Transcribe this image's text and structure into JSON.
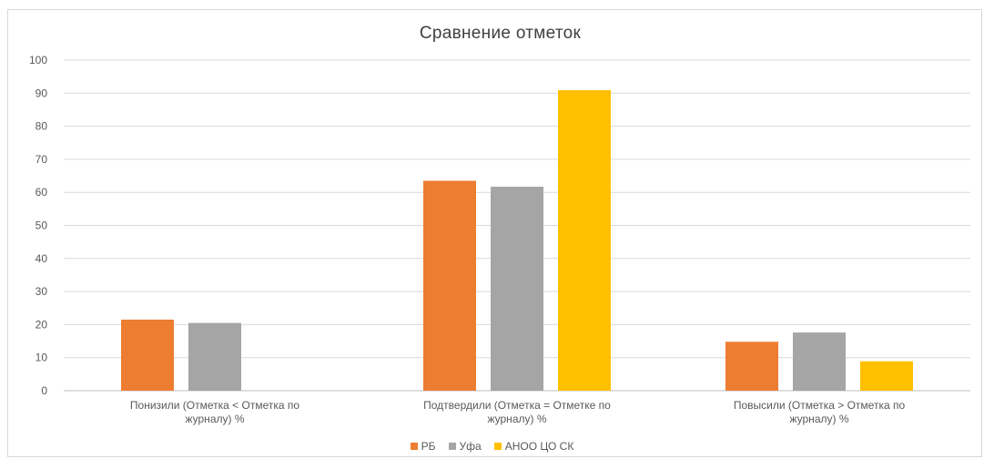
{
  "chart_data": {
    "type": "bar",
    "title": "Сравнение отметок",
    "categories": [
      [
        "Понизили (Отметка < Отметка по",
        "журналу) %"
      ],
      [
        "Подтвердили (Отметка = Отметке по",
        "журналу) %"
      ],
      [
        "Повысили (Отметка > Отметка по",
        "журналу) %"
      ]
    ],
    "series": [
      {
        "name": "РБ",
        "color": "#ed7d31",
        "values": [
          21.5,
          63.5,
          14.8
        ]
      },
      {
        "name": "Уфа",
        "color": "#a5a5a5",
        "values": [
          20.5,
          61.7,
          17.6
        ]
      },
      {
        "name": "АНОО ЦО СК",
        "color": "#ffc000",
        "values": [
          0,
          90.9,
          8.9
        ]
      }
    ],
    "ylim": [
      0,
      100
    ],
    "yticks": [
      0,
      10,
      20,
      30,
      40,
      50,
      60,
      70,
      80,
      90,
      100
    ],
    "grid": true,
    "legend_position": "bottom"
  }
}
